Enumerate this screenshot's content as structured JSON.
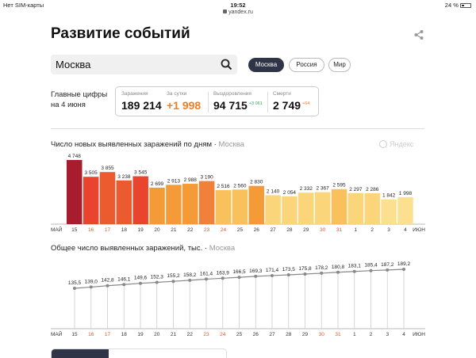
{
  "status_bar": {
    "carrier": "Нет SIM-карты",
    "time": "19:52",
    "battery": "24 %",
    "url": "yandex.ru"
  },
  "page": {
    "title": "Развитие событий"
  },
  "search": {
    "value": "Москва"
  },
  "region_tabs": [
    {
      "label": "Москва",
      "active": true
    },
    {
      "label": "Россия",
      "active": false
    },
    {
      "label": "Мир",
      "active": false
    }
  ],
  "summary": {
    "label_line1": "Главные цифры",
    "label_line2": "на 4 июня",
    "cases_label": "Заражения",
    "cases_value": "189 214",
    "daily_label": "За сутки",
    "daily_value": "+1 998",
    "recovered_label": "Выздоровления",
    "recovered_value": "94 715",
    "recovered_delta": "+3 061",
    "deaths_label": "Смерти",
    "deaths_value": "2 749",
    "deaths_delta": "+64"
  },
  "brand": "Яндекс",
  "colors": {
    "accent_dark": "#2f3447",
    "orange": "#f07d2a",
    "green": "#3aa35a",
    "weekend": "#e8552d"
  },
  "chart_data": [
    {
      "type": "bar",
      "title": "Число новых выявленных заражений по дням",
      "region": "Москва",
      "month_start": "МАЙ",
      "month_end": "ИЮН",
      "categories": [
        "15",
        "16",
        "17",
        "18",
        "19",
        "20",
        "21",
        "22",
        "23",
        "24",
        "25",
        "26",
        "27",
        "28",
        "29",
        "30",
        "31",
        "1",
        "2",
        "3",
        "4"
      ],
      "weekend": [
        false,
        true,
        true,
        false,
        false,
        false,
        false,
        false,
        true,
        true,
        false,
        false,
        false,
        false,
        false,
        true,
        true,
        false,
        false,
        false,
        false
      ],
      "values": [
        4748,
        3505,
        3855,
        3238,
        3545,
        2699,
        2913,
        2988,
        3190,
        2516,
        2560,
        2830,
        2140,
        2054,
        2332,
        2367,
        2595,
        2297,
        2286,
        1842,
        1998
      ],
      "labels": [
        "4 748",
        "3 505",
        "3 855",
        "3 238",
        "3 545",
        "2 699",
        "2 913",
        "2 988",
        "3 190",
        "2 516",
        "2 560",
        "2 830",
        "2 140",
        "2 054",
        "2 332",
        "2 367",
        "2 595",
        "2 297",
        "2 286",
        "1 842",
        "1 998"
      ],
      "colors": [
        "#a71d2e",
        "#e9452e",
        "#ec5a2f",
        "#ec5a2f",
        "#e9452e",
        "#f49b38",
        "#f49b38",
        "#f49b38",
        "#f0803a",
        "#f9c15c",
        "#f9c15c",
        "#f49b38",
        "#fbd57a",
        "#fbd57a",
        "#fbd57a",
        "#fbd57a",
        "#f9c15c",
        "#fbd57a",
        "#fbd57a",
        "#fde08f",
        "#fde08f"
      ],
      "ylim": [
        0,
        4748
      ]
    },
    {
      "type": "line",
      "title": "Общее число выявленных заражений, тыс.",
      "region": "Москва",
      "month_start": "МАЙ",
      "month_end": "ИЮН",
      "categories": [
        "15",
        "16",
        "17",
        "18",
        "19",
        "20",
        "21",
        "22",
        "23",
        "24",
        "25",
        "26",
        "27",
        "28",
        "29",
        "30",
        "31",
        "1",
        "2",
        "3",
        "4"
      ],
      "weekend": [
        false,
        true,
        true,
        false,
        false,
        false,
        false,
        false,
        true,
        true,
        false,
        false,
        false,
        false,
        false,
        true,
        true,
        false,
        false,
        false,
        false
      ],
      "values": [
        135.5,
        139.0,
        142.8,
        146.1,
        149.6,
        152.3,
        155.2,
        158.2,
        161.4,
        163.9,
        166.5,
        169.3,
        171.4,
        173.5,
        175.8,
        178.2,
        180.8,
        183.1,
        185.4,
        187.2,
        189.2
      ],
      "labels": [
        "135,5",
        "139,0",
        "142,8",
        "146,1",
        "149,6",
        "152,3",
        "155,2",
        "158,2",
        "161,4",
        "163,9",
        "166,5",
        "169,3",
        "171,4",
        "173,5",
        "175,8",
        "178,2",
        "180,8",
        "183,1",
        "185,4",
        "187,2",
        "189,2"
      ]
    }
  ]
}
